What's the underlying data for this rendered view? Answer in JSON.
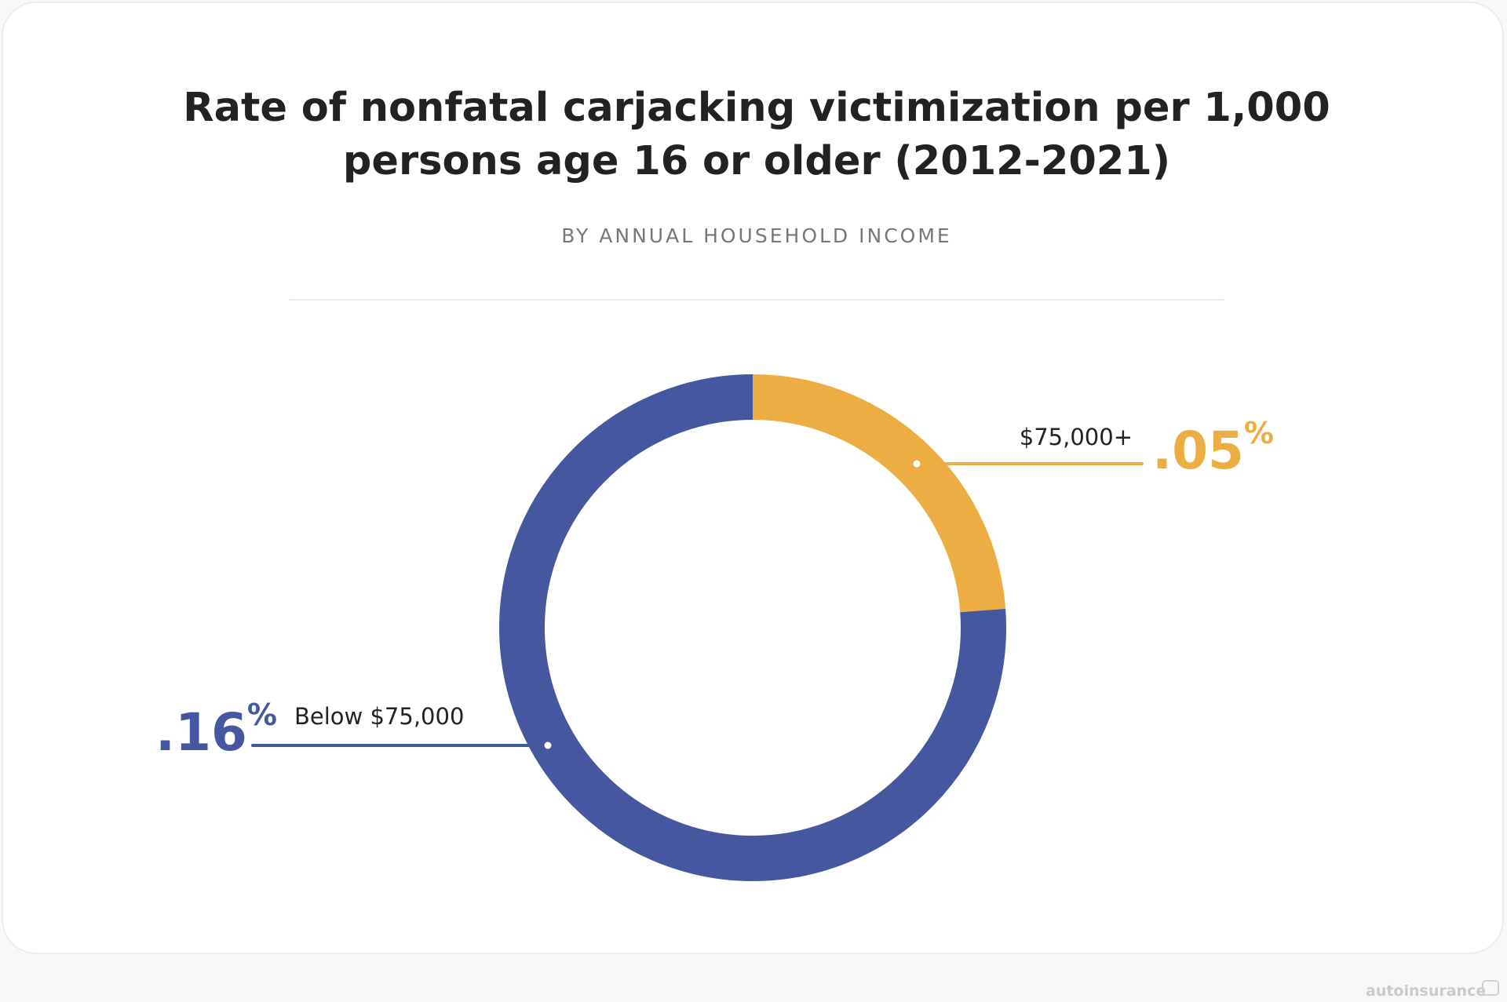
{
  "header": {
    "title_line1": "Rate of nonfatal carjacking victimization per 1,000",
    "title_line2": "persons age 16 or older (2012-2021)",
    "subtitle": "BY ANNUAL HOUSEHOLD INCOME"
  },
  "chart_data": {
    "type": "pie",
    "title": "Rate of nonfatal carjacking victimization per 1,000 persons age 16 or older (2012-2021)",
    "subtitle": "BY ANNUAL HOUSEHOLD INCOME",
    "unit": "%",
    "donut": true,
    "categories": [
      "$75,000+",
      "Below $75,000"
    ],
    "values": [
      0.05,
      0.16
    ],
    "value_labels": [
      ".05",
      ".16"
    ],
    "colors": [
      "#ECAE42",
      "#45579E"
    ]
  },
  "watermark": {
    "text": "autoinsurance",
    "icon": "car-icon"
  }
}
